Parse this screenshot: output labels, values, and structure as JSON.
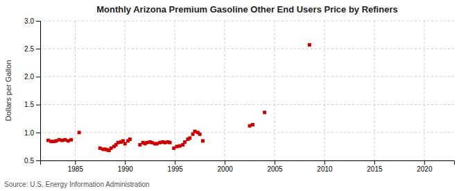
{
  "chart_data": {
    "type": "scatter",
    "title": "Monthly Arizona Premium Gasoline Other End Users Price by Refiners",
    "ylabel": "Dollars per Gallon",
    "source": "Source: U.S. Energy Information Administration",
    "color": "#cc0000",
    "marker": "square",
    "grid": true,
    "xlim": [
      1981.5,
      2023
    ],
    "ylim": [
      0.5,
      3.0
    ],
    "xticks": [
      1985,
      1990,
      1995,
      2000,
      2005,
      2010,
      2015,
      2020
    ],
    "yticks": [
      0.5,
      {
        "value": 1.0,
        "label": "1.0"
      },
      1.5,
      {
        "value": 2.0,
        "label": "2.0"
      },
      2.5,
      {
        "value": 3.0,
        "label": "3.0"
      }
    ],
    "x": [
      1982.3,
      1982.6,
      1982.9,
      1983.1,
      1983.4,
      1983.7,
      1984.0,
      1984.3,
      1984.6,
      1985.4,
      1987.5,
      1987.8,
      1988.0,
      1988.2,
      1988.4,
      1988.6,
      1988.9,
      1989.1,
      1989.3,
      1989.6,
      1989.8,
      1990.0,
      1990.3,
      1990.5,
      1991.5,
      1991.8,
      1992.0,
      1992.2,
      1992.5,
      1992.7,
      1993.0,
      1993.2,
      1993.5,
      1993.8,
      1994.0,
      1994.3,
      1994.5,
      1994.9,
      1995.2,
      1995.5,
      1995.8,
      1996.0,
      1996.3,
      1996.5,
      1996.8,
      1997.0,
      1997.3,
      1997.5,
      1997.8,
      2002.5,
      2002.8,
      2004.0,
      2008.5
    ],
    "values": [
      0.86,
      0.84,
      0.84,
      0.85,
      0.87,
      0.86,
      0.87,
      0.85,
      0.87,
      1.0,
      0.72,
      0.7,
      0.7,
      0.69,
      0.68,
      0.72,
      0.75,
      0.78,
      0.82,
      0.83,
      0.85,
      0.8,
      0.85,
      0.88,
      0.78,
      0.82,
      0.8,
      0.82,
      0.83,
      0.82,
      0.8,
      0.8,
      0.82,
      0.83,
      0.82,
      0.83,
      0.82,
      0.72,
      0.75,
      0.76,
      0.78,
      0.83,
      0.88,
      0.9,
      0.97,
      1.02,
      1.0,
      0.97,
      0.85,
      1.12,
      1.14,
      1.36,
      2.57
    ]
  }
}
